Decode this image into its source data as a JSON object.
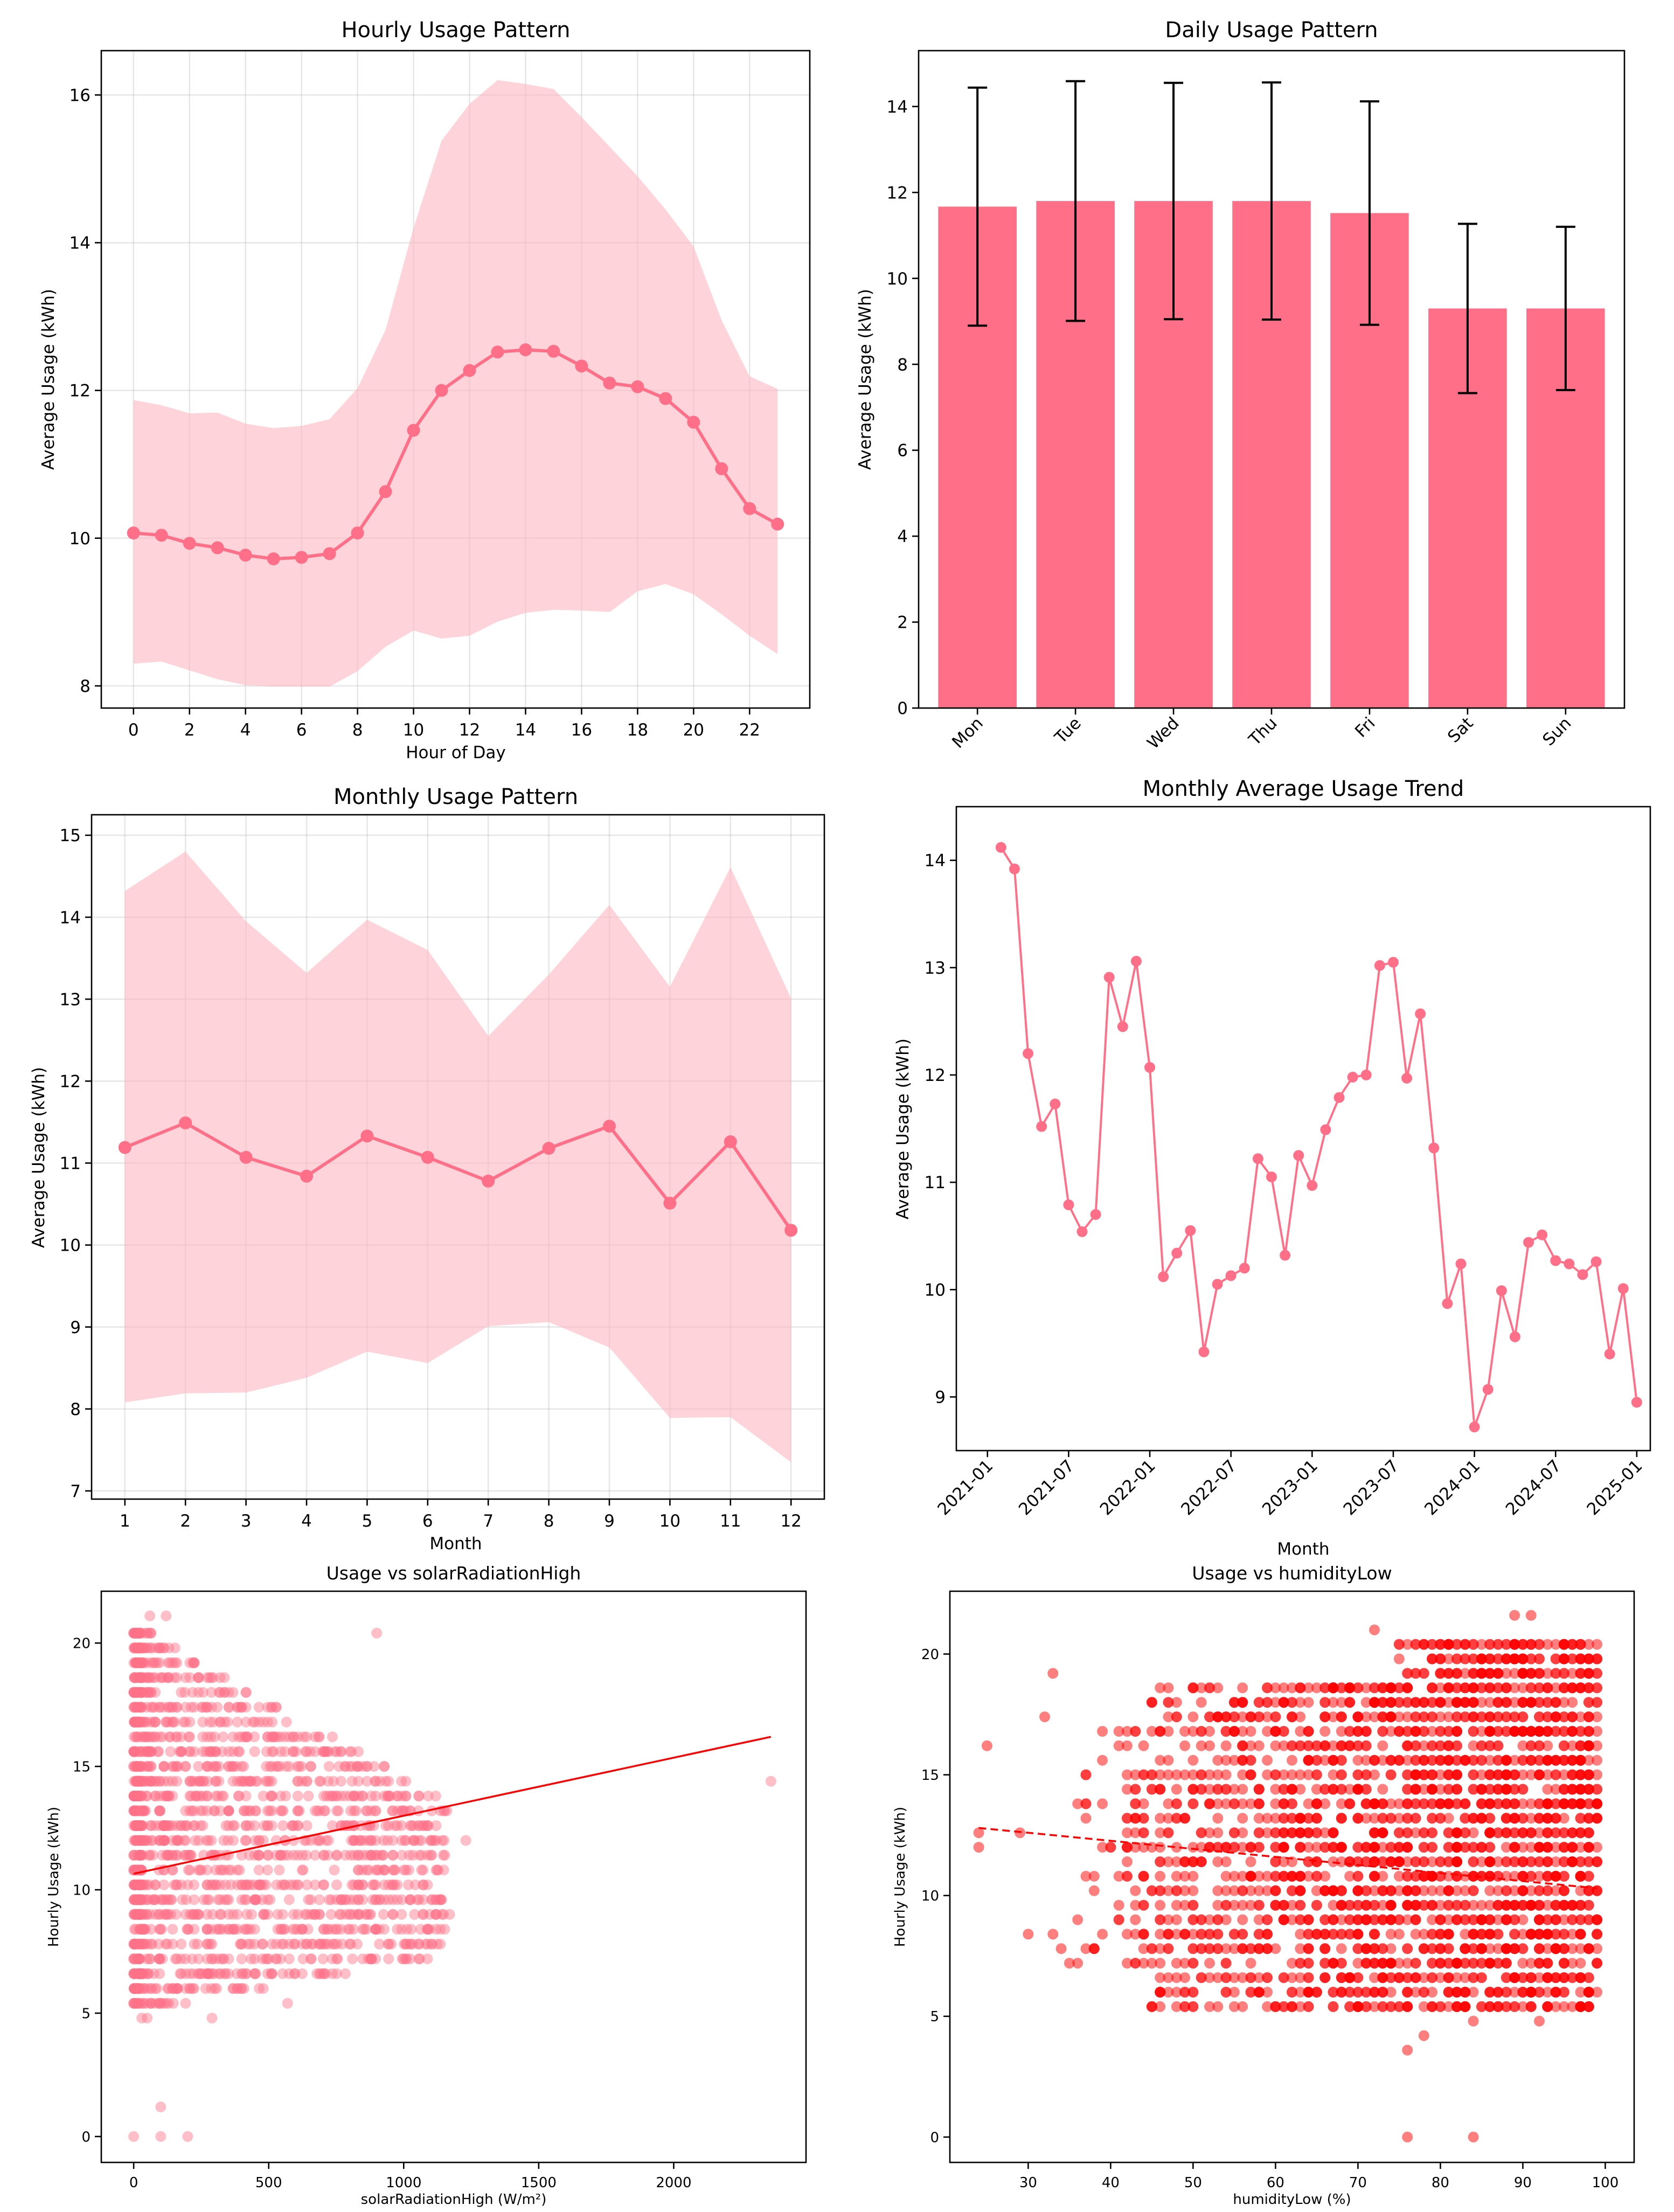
{
  "colors": {
    "main": "#ff7088",
    "band": "#ffb6c1",
    "scatter_main": "#ff7088",
    "red": "#ff0000",
    "axis": "#000000"
  },
  "chart_data": [
    {
      "id": "hourly",
      "type": "line",
      "title": "Hourly Usage Pattern",
      "xlabel": "Hour of Day",
      "ylabel": "Average Usage (kWh)",
      "xlim": [
        -1.15,
        24.15
      ],
      "ylim": [
        7.7,
        16.6
      ],
      "grid": true,
      "xticks": [
        0,
        2,
        4,
        6,
        8,
        10,
        12,
        14,
        16,
        18,
        20,
        22
      ],
      "yticks": [
        8,
        10,
        12,
        14,
        16
      ],
      "x": [
        0,
        1,
        2,
        3,
        4,
        5,
        6,
        7,
        8,
        9,
        10,
        11,
        12,
        13,
        14,
        15,
        16,
        17,
        18,
        19,
        20,
        21,
        22,
        23
      ],
      "mean": [
        10.07,
        10.04,
        9.93,
        9.87,
        9.77,
        9.72,
        9.74,
        9.79,
        10.07,
        10.63,
        11.46,
        12.0,
        12.27,
        12.52,
        12.55,
        12.53,
        12.33,
        12.1,
        12.05,
        11.89,
        11.57,
        10.94,
        10.4,
        10.19
      ],
      "upper": [
        11.87,
        11.8,
        11.69,
        11.7,
        11.55,
        11.49,
        11.52,
        11.61,
        12.03,
        12.82,
        14.2,
        15.38,
        15.88,
        16.2,
        16.15,
        16.08,
        15.7,
        15.3,
        14.9,
        14.45,
        13.95,
        12.95,
        12.19,
        12.02
      ],
      "lower": [
        8.3,
        8.33,
        8.21,
        8.09,
        8.01,
        7.99,
        7.99,
        7.99,
        8.2,
        8.53,
        8.75,
        8.64,
        8.68,
        8.87,
        8.99,
        9.03,
        9.02,
        9.0,
        9.28,
        9.38,
        9.24,
        8.97,
        8.68,
        8.43
      ]
    },
    {
      "id": "daily",
      "type": "bar",
      "title": "Daily Usage Pattern",
      "xlabel": "",
      "ylabel": "Average Usage (kWh)",
      "ylim": [
        0,
        15.3
      ],
      "grid": false,
      "yticks": [
        0,
        2,
        4,
        6,
        8,
        10,
        12,
        14
      ],
      "categories": [
        "Mon",
        "Tue",
        "Wed",
        "Thu",
        "Fri",
        "Sat",
        "Sun"
      ],
      "values": [
        11.67,
        11.8,
        11.8,
        11.8,
        11.52,
        9.3,
        9.3
      ],
      "errors": [
        2.77,
        2.79,
        2.75,
        2.76,
        2.6,
        1.97,
        1.9
      ]
    },
    {
      "id": "monthly",
      "type": "line",
      "title": "Monthly Usage Pattern",
      "xlabel": "Month",
      "ylabel": "Average Usage (kWh)",
      "xlim": [
        0.45,
        12.55
      ],
      "ylim": [
        6.9,
        15.25
      ],
      "grid": true,
      "xticks": [
        1,
        2,
        3,
        4,
        5,
        6,
        7,
        8,
        9,
        10,
        11,
        12
      ],
      "yticks": [
        7,
        8,
        9,
        10,
        11,
        12,
        13,
        14,
        15
      ],
      "x": [
        1,
        2,
        3,
        4,
        5,
        6,
        7,
        8,
        9,
        10,
        11,
        12
      ],
      "mean": [
        11.19,
        11.49,
        11.07,
        10.84,
        11.33,
        11.07,
        10.78,
        11.18,
        11.45,
        10.51,
        11.26,
        10.18
      ],
      "upper": [
        14.32,
        14.8,
        13.95,
        13.32,
        13.97,
        13.6,
        12.55,
        13.3,
        14.15,
        13.15,
        14.61,
        13.01
      ],
      "lower": [
        8.08,
        8.19,
        8.2,
        8.38,
        8.7,
        8.56,
        9.01,
        9.06,
        8.75,
        7.89,
        7.9,
        7.35
      ]
    },
    {
      "id": "trend",
      "type": "line",
      "title": "Monthly Average Usage Trend",
      "xlabel": "Month",
      "ylabel": "Average Usage (kWh)",
      "xlim": [
        -2.3,
        49.0
      ],
      "ylim": [
        8.5,
        14.5
      ],
      "grid": false,
      "xticks": [
        0,
        6,
        12,
        18,
        24,
        30,
        36,
        42,
        48
      ],
      "xticklabels": [
        "2021-01",
        "2021-07",
        "2022-01",
        "2022-07",
        "2023-01",
        "2023-07",
        "2024-01",
        "2024-07",
        "2025-01"
      ],
      "yticks": [
        9,
        10,
        11,
        12,
        13,
        14
      ],
      "x": [
        1,
        2,
        3,
        4,
        5,
        6,
        7,
        8,
        9,
        10,
        11,
        12,
        13,
        14,
        15,
        16,
        17,
        18,
        19,
        20,
        21,
        22,
        23,
        24,
        25,
        26,
        27,
        28,
        29,
        30,
        31,
        32,
        33,
        34,
        35,
        36,
        37,
        38,
        39,
        40,
        41,
        42,
        43,
        44,
        45,
        46,
        47,
        48
      ],
      "values": [
        14.12,
        13.92,
        12.2,
        11.52,
        11.73,
        10.79,
        10.54,
        10.7,
        12.91,
        12.45,
        13.06,
        12.07,
        10.12,
        10.34,
        10.55,
        9.42,
        10.05,
        10.13,
        10.2,
        11.22,
        11.05,
        10.32,
        11.25,
        10.97,
        11.49,
        11.79,
        11.98,
        12.0,
        13.02,
        13.05,
        11.97,
        12.57,
        11.32,
        9.87,
        10.24,
        8.72,
        9.07,
        9.99,
        9.56,
        10.44,
        10.51,
        10.27,
        10.24,
        10.14,
        10.26,
        9.4,
        10.01,
        8.95
      ]
    },
    {
      "id": "scatter_solar",
      "type": "scatter",
      "title": "Usage vs solarRadiationHigh",
      "xlabel": "solarRadiationHigh (W/m²)",
      "ylabel": "Hourly Usage (kWh)",
      "xlim": [
        -120,
        2490
      ],
      "ylim": [
        -1.05,
        22.1
      ],
      "xticks": [
        0,
        500,
        1000,
        1500,
        2000
      ],
      "yticks": [
        0,
        5,
        10,
        15,
        20
      ],
      "trendline": {
        "x0": 0,
        "y0": 10.65,
        "x1": 2360,
        "y1": 16.2,
        "style": "solid"
      },
      "cloud": {
        "x_max": 1150,
        "y_min": 4.9,
        "y_max": 21.1
      },
      "points": [
        [
          0,
          0
        ],
        [
          100,
          0
        ],
        [
          200,
          0
        ],
        [
          100,
          1.2
        ],
        [
          2360,
          14.4
        ],
        [
          1230,
          12.0
        ],
        [
          1170,
          9.0
        ],
        [
          1160,
          13.2
        ],
        [
          1050,
          9.6
        ],
        [
          900,
          20.4
        ],
        [
          120,
          21.1
        ],
        [
          60,
          21.1
        ],
        [
          290,
          4.8
        ],
        [
          570,
          5.4
        ],
        [
          30,
          4.8
        ],
        [
          50,
          4.8
        ]
      ]
    },
    {
      "id": "scatter_humidity",
      "type": "scatter",
      "title": "Usage vs humidityLow",
      "xlabel": "humidityLow (%)",
      "ylabel": "Hourly Usage (kWh)",
      "xlim": [
        20.5,
        103.5
      ],
      "ylim": [
        -1.05,
        22.6
      ],
      "xticks": [
        30,
        40,
        50,
        60,
        70,
        80,
        90,
        100
      ],
      "yticks": [
        0,
        5,
        10,
        15,
        20
      ],
      "trendline": {
        "x0": 24,
        "y0": 12.8,
        "x1": 99,
        "y1": 10.3,
        "style": "dashed"
      },
      "cloud": {
        "x_min": 35,
        "x_max": 99,
        "y_min": 5.4,
        "y_max": 20.4
      },
      "points": [
        [
          76,
          0
        ],
        [
          84,
          0
        ],
        [
          76,
          3.6
        ],
        [
          24,
          12.0
        ],
        [
          24,
          12.6
        ],
        [
          25,
          16.2
        ],
        [
          29,
          12.6
        ],
        [
          33,
          19.2
        ],
        [
          32,
          17.4
        ],
        [
          34,
          7.8
        ],
        [
          33,
          8.4
        ],
        [
          30,
          8.4
        ],
        [
          72,
          21.0
        ],
        [
          89,
          21.6
        ],
        [
          91,
          21.6
        ],
        [
          82,
          20.4
        ],
        [
          84,
          4.8
        ],
        [
          92,
          4.8
        ],
        [
          78,
          4.2
        ]
      ]
    }
  ]
}
